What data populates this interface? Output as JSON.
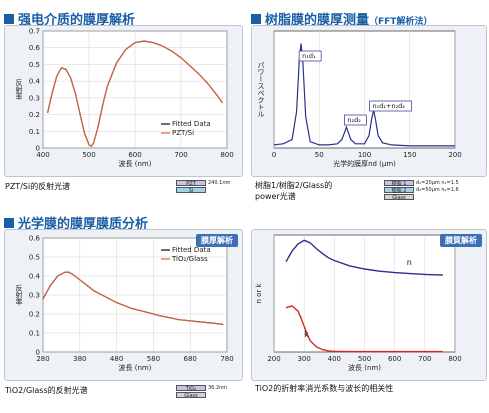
{
  "sections": {
    "s1": "强电介质的膜厚解析",
    "s2_main": "树脂膜的膜厚测量",
    "s2_sub": "（FFT解析法）",
    "s3": "光学膜的膜厚膜质分析"
  },
  "tags": {
    "p3": "膜厚解析",
    "p4": "膜質解析"
  },
  "captions": {
    "c1": "PZT/Si的反射光谱",
    "c2a": "树脂1/树脂2/Glass的",
    "c2b": "power光谱",
    "c3": "TiO2/Glass的反射光谱",
    "c4": "TiO2的折射率消光系数与波长的相关性"
  },
  "layers": {
    "l1": [
      {
        "label": "PZT",
        "value": "240.1nm"
      },
      {
        "label": "Si",
        "value": ""
      }
    ],
    "l2": [
      {
        "label": "樹脂 1",
        "value": "d₁=20μm  n₁=1.5"
      },
      {
        "label": "樹脂 2",
        "value": "d₂=50μm  n₂=1.6"
      },
      {
        "label": "Glass",
        "value": ""
      }
    ],
    "l3": [
      {
        "label": "TiO₂",
        "value": "36.2nm"
      },
      {
        "label": "Glass",
        "value": ""
      }
    ]
  },
  "chart_data": [
    {
      "type": "line",
      "xlabel": "波長 (nm)",
      "ylabel": "反射率",
      "xlim": [
        400,
        800
      ],
      "ylim": [
        0,
        0.7
      ],
      "xticks": [
        400,
        500,
        600,
        700,
        800
      ],
      "yticks": [
        0,
        0.1,
        0.2,
        0.3,
        0.4,
        0.5,
        0.6,
        0.7
      ],
      "legend": "bottom-right",
      "colors": [
        "#111111",
        "#e8663a"
      ],
      "series": [
        {
          "name": "Fitted Data",
          "x": [
            410,
            420,
            430,
            440,
            450,
            460,
            470,
            480,
            490,
            500,
            505,
            510,
            520,
            530,
            540,
            560,
            580,
            600,
            620,
            640,
            660,
            680,
            700,
            720,
            740,
            760,
            780,
            790
          ],
          "y": [
            0.21,
            0.33,
            0.43,
            0.48,
            0.47,
            0.42,
            0.33,
            0.21,
            0.09,
            0.02,
            0.01,
            0.03,
            0.13,
            0.26,
            0.37,
            0.51,
            0.59,
            0.63,
            0.64,
            0.63,
            0.61,
            0.58,
            0.54,
            0.49,
            0.44,
            0.38,
            0.31,
            0.27
          ]
        },
        {
          "name": "PZT/Si",
          "x": [
            410,
            420,
            430,
            440,
            450,
            460,
            470,
            480,
            490,
            500,
            505,
            510,
            520,
            530,
            540,
            560,
            580,
            600,
            620,
            640,
            660,
            680,
            700,
            720,
            740,
            760,
            780,
            790
          ],
          "y": [
            0.21,
            0.33,
            0.43,
            0.48,
            0.47,
            0.42,
            0.33,
            0.21,
            0.09,
            0.02,
            0.01,
            0.03,
            0.13,
            0.26,
            0.37,
            0.51,
            0.59,
            0.63,
            0.64,
            0.63,
            0.61,
            0.58,
            0.54,
            0.49,
            0.44,
            0.38,
            0.31,
            0.27
          ]
        }
      ]
    },
    {
      "type": "line",
      "xlabel": "光学的膜厚nd (μm)",
      "ylabel": "パワースペクトル",
      "xlim": [
        0,
        200
      ],
      "xticks": [
        0,
        50,
        100,
        150,
        200
      ],
      "colors": [
        "#2b2f8f"
      ],
      "annotations": [
        {
          "text": "n₁d₁",
          "x": 30
        },
        {
          "text": "n₂d₂",
          "x": 80
        },
        {
          "text": "n₁d₁+n₂d₂",
          "x": 110
        }
      ],
      "series": [
        {
          "name": "",
          "x": [
            0,
            10,
            20,
            25,
            28,
            30,
            32,
            35,
            40,
            50,
            60,
            70,
            75,
            78,
            80,
            82,
            85,
            90,
            100,
            105,
            108,
            110,
            112,
            115,
            120,
            130,
            150,
            175,
            200
          ],
          "y": [
            0.03,
            0.04,
            0.08,
            0.35,
            0.85,
            1.0,
            0.8,
            0.3,
            0.06,
            0.03,
            0.03,
            0.04,
            0.08,
            0.15,
            0.2,
            0.15,
            0.08,
            0.04,
            0.04,
            0.12,
            0.28,
            0.36,
            0.28,
            0.12,
            0.05,
            0.03,
            0.02,
            0.02,
            0.02
          ]
        }
      ]
    },
    {
      "type": "line",
      "xlabel": "波長 (nm)",
      "ylabel": "反射率",
      "xlim": [
        280,
        780
      ],
      "ylim": [
        0,
        0.6
      ],
      "xticks": [
        280,
        380,
        480,
        580,
        680,
        780
      ],
      "yticks": [
        0,
        0.1,
        0.2,
        0.3,
        0.4,
        0.5,
        0.6
      ],
      "legend": "top-right",
      "colors": [
        "#111111",
        "#e8663a"
      ],
      "series": [
        {
          "name": "Fitted Data",
          "x": [
            280,
            300,
            320,
            340,
            350,
            360,
            380,
            400,
            420,
            450,
            480,
            520,
            560,
            600,
            650,
            700,
            750,
            770
          ],
          "y": [
            0.28,
            0.35,
            0.4,
            0.42,
            0.42,
            0.41,
            0.38,
            0.35,
            0.32,
            0.29,
            0.26,
            0.23,
            0.21,
            0.19,
            0.17,
            0.16,
            0.15,
            0.145
          ]
        },
        {
          "name": "TiO₂/Glass",
          "x": [
            280,
            300,
            320,
            340,
            350,
            360,
            380,
            400,
            420,
            450,
            480,
            520,
            560,
            600,
            650,
            700,
            750,
            770
          ],
          "y": [
            0.28,
            0.35,
            0.4,
            0.42,
            0.42,
            0.41,
            0.38,
            0.35,
            0.32,
            0.29,
            0.26,
            0.23,
            0.21,
            0.19,
            0.17,
            0.16,
            0.15,
            0.145
          ]
        }
      ]
    },
    {
      "type": "line",
      "xlabel": "波長 (nm)",
      "ylabel": "n or k",
      "xlim": [
        200,
        800
      ],
      "xticks": [
        200,
        300,
        400,
        500,
        600,
        700,
        800
      ],
      "colors": [
        "#2b2f8f",
        "#d8261c"
      ],
      "series": [
        {
          "name": "n",
          "x": [
            240,
            260,
            280,
            300,
            320,
            340,
            360,
            380,
            400,
            450,
            500,
            550,
            600,
            650,
            700,
            760
          ],
          "y": [
            2.55,
            2.85,
            3.05,
            3.15,
            3.08,
            2.92,
            2.78,
            2.66,
            2.58,
            2.43,
            2.34,
            2.28,
            2.24,
            2.21,
            2.19,
            2.17
          ]
        },
        {
          "name": "k",
          "x": [
            240,
            260,
            280,
            290,
            300,
            310,
            320,
            340,
            360,
            380,
            400,
            450,
            500,
            600,
            700,
            760
          ],
          "y": [
            1.25,
            1.3,
            1.15,
            0.95,
            0.72,
            0.5,
            0.32,
            0.15,
            0.07,
            0.03,
            0.02,
            0.01,
            0.01,
            0.01,
            0.01,
            0.01
          ]
        }
      ]
    }
  ]
}
